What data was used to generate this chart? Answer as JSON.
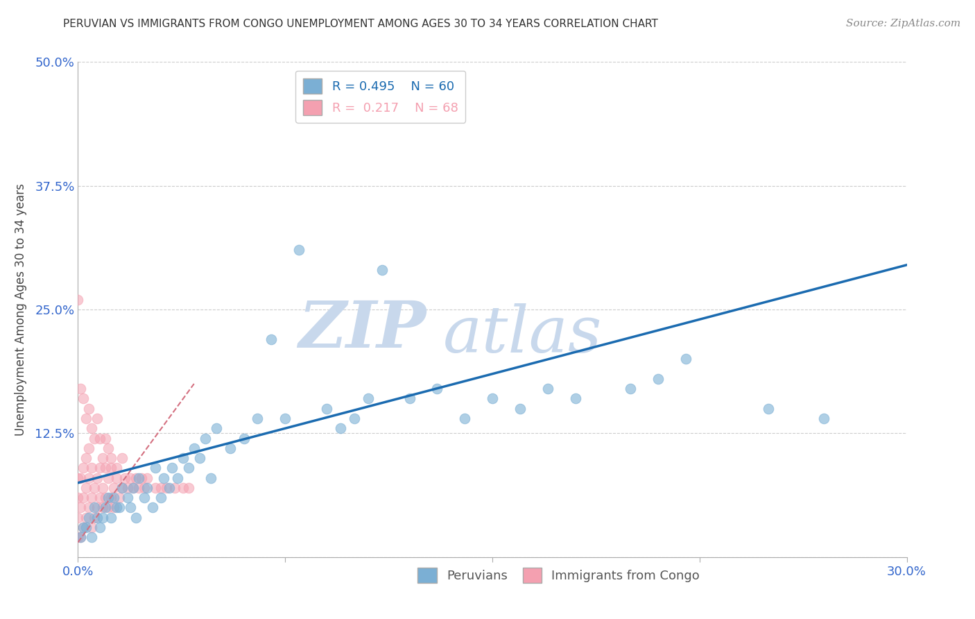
{
  "title": "PERUVIAN VS IMMIGRANTS FROM CONGO UNEMPLOYMENT AMONG AGES 30 TO 34 YEARS CORRELATION CHART",
  "source": "Source: ZipAtlas.com",
  "xlabel_peruvians": "Peruvians",
  "xlabel_congo": "Immigrants from Congo",
  "ylabel": "Unemployment Among Ages 30 to 34 years",
  "xlim": [
    0.0,
    0.3
  ],
  "ylim": [
    0.0,
    0.5
  ],
  "xticks": [
    0.0,
    0.075,
    0.15,
    0.225,
    0.3
  ],
  "xtick_labels": [
    "0.0%",
    "",
    "",
    "",
    "30.0%"
  ],
  "yticks": [
    0.0,
    0.125,
    0.25,
    0.375,
    0.5
  ],
  "ytick_labels": [
    "",
    "12.5%",
    "25.0%",
    "37.5%",
    "50.0%"
  ],
  "blue_color": "#7BAFD4",
  "pink_color": "#F4A0B0",
  "blue_line_color": "#1B6BB0",
  "pink_line_color": "#D47080",
  "legend_R_blue": "R = 0.495",
  "legend_N_blue": "N = 60",
  "legend_R_pink": "R = 0.217",
  "legend_N_pink": "N = 68",
  "watermark_zip": "ZIP",
  "watermark_atlas": "atlas",
  "blue_scatter_x": [
    0.001,
    0.003,
    0.005,
    0.007,
    0.008,
    0.01,
    0.012,
    0.013,
    0.015,
    0.016,
    0.018,
    0.019,
    0.02,
    0.021,
    0.022,
    0.024,
    0.025,
    0.027,
    0.028,
    0.03,
    0.031,
    0.033,
    0.034,
    0.036,
    0.038,
    0.04,
    0.042,
    0.044,
    0.046,
    0.048,
    0.05,
    0.055,
    0.06,
    0.065,
    0.07,
    0.075,
    0.08,
    0.09,
    0.095,
    0.1,
    0.105,
    0.11,
    0.12,
    0.13,
    0.14,
    0.15,
    0.16,
    0.17,
    0.18,
    0.2,
    0.21,
    0.22,
    0.25,
    0.27,
    0.002,
    0.004,
    0.006,
    0.009,
    0.011,
    0.014
  ],
  "blue_scatter_y": [
    0.02,
    0.03,
    0.02,
    0.04,
    0.03,
    0.05,
    0.04,
    0.06,
    0.05,
    0.07,
    0.06,
    0.05,
    0.07,
    0.04,
    0.08,
    0.06,
    0.07,
    0.05,
    0.09,
    0.06,
    0.08,
    0.07,
    0.09,
    0.08,
    0.1,
    0.09,
    0.11,
    0.1,
    0.12,
    0.08,
    0.13,
    0.11,
    0.12,
    0.14,
    0.22,
    0.14,
    0.31,
    0.15,
    0.13,
    0.14,
    0.16,
    0.29,
    0.16,
    0.17,
    0.14,
    0.16,
    0.15,
    0.17,
    0.16,
    0.17,
    0.18,
    0.2,
    0.15,
    0.14,
    0.03,
    0.04,
    0.05,
    0.04,
    0.06,
    0.05
  ],
  "pink_scatter_x": [
    0.0,
    0.0,
    0.0,
    0.0,
    0.001,
    0.001,
    0.001,
    0.002,
    0.002,
    0.002,
    0.003,
    0.003,
    0.003,
    0.004,
    0.004,
    0.004,
    0.005,
    0.005,
    0.005,
    0.006,
    0.006,
    0.007,
    0.007,
    0.008,
    0.008,
    0.009,
    0.009,
    0.01,
    0.01,
    0.011,
    0.011,
    0.012,
    0.012,
    0.013,
    0.013,
    0.014,
    0.015,
    0.016,
    0.017,
    0.018,
    0.019,
    0.02,
    0.021,
    0.022,
    0.023,
    0.024,
    0.025,
    0.028,
    0.03,
    0.032,
    0.035,
    0.038,
    0.04,
    0.0,
    0.001,
    0.002,
    0.003,
    0.004,
    0.005,
    0.006,
    0.007,
    0.008,
    0.009,
    0.01,
    0.011,
    0.012,
    0.014,
    0.016
  ],
  "pink_scatter_y": [
    0.02,
    0.04,
    0.06,
    0.08,
    0.02,
    0.05,
    0.08,
    0.03,
    0.06,
    0.09,
    0.04,
    0.07,
    0.1,
    0.05,
    0.08,
    0.11,
    0.03,
    0.06,
    0.09,
    0.04,
    0.07,
    0.05,
    0.08,
    0.06,
    0.09,
    0.05,
    0.07,
    0.06,
    0.09,
    0.05,
    0.08,
    0.06,
    0.09,
    0.05,
    0.07,
    0.08,
    0.06,
    0.07,
    0.08,
    0.07,
    0.08,
    0.07,
    0.08,
    0.07,
    0.08,
    0.07,
    0.08,
    0.07,
    0.07,
    0.07,
    0.07,
    0.07,
    0.07,
    0.26,
    0.17,
    0.16,
    0.14,
    0.15,
    0.13,
    0.12,
    0.14,
    0.12,
    0.1,
    0.12,
    0.11,
    0.1,
    0.09,
    0.1
  ],
  "blue_line_x": [
    0.0,
    0.3
  ],
  "blue_line_y": [
    0.075,
    0.295
  ],
  "pink_line_x": [
    0.0,
    0.042
  ],
  "pink_line_y": [
    0.015,
    0.175
  ],
  "background_color": "#FFFFFF",
  "grid_color": "#CCCCCC",
  "title_color": "#333333",
  "axis_label_color": "#444444",
  "tick_color": "#3366CC",
  "watermark_color_zip": "#C8D8EC",
  "watermark_color_atlas": "#C8D8EC"
}
